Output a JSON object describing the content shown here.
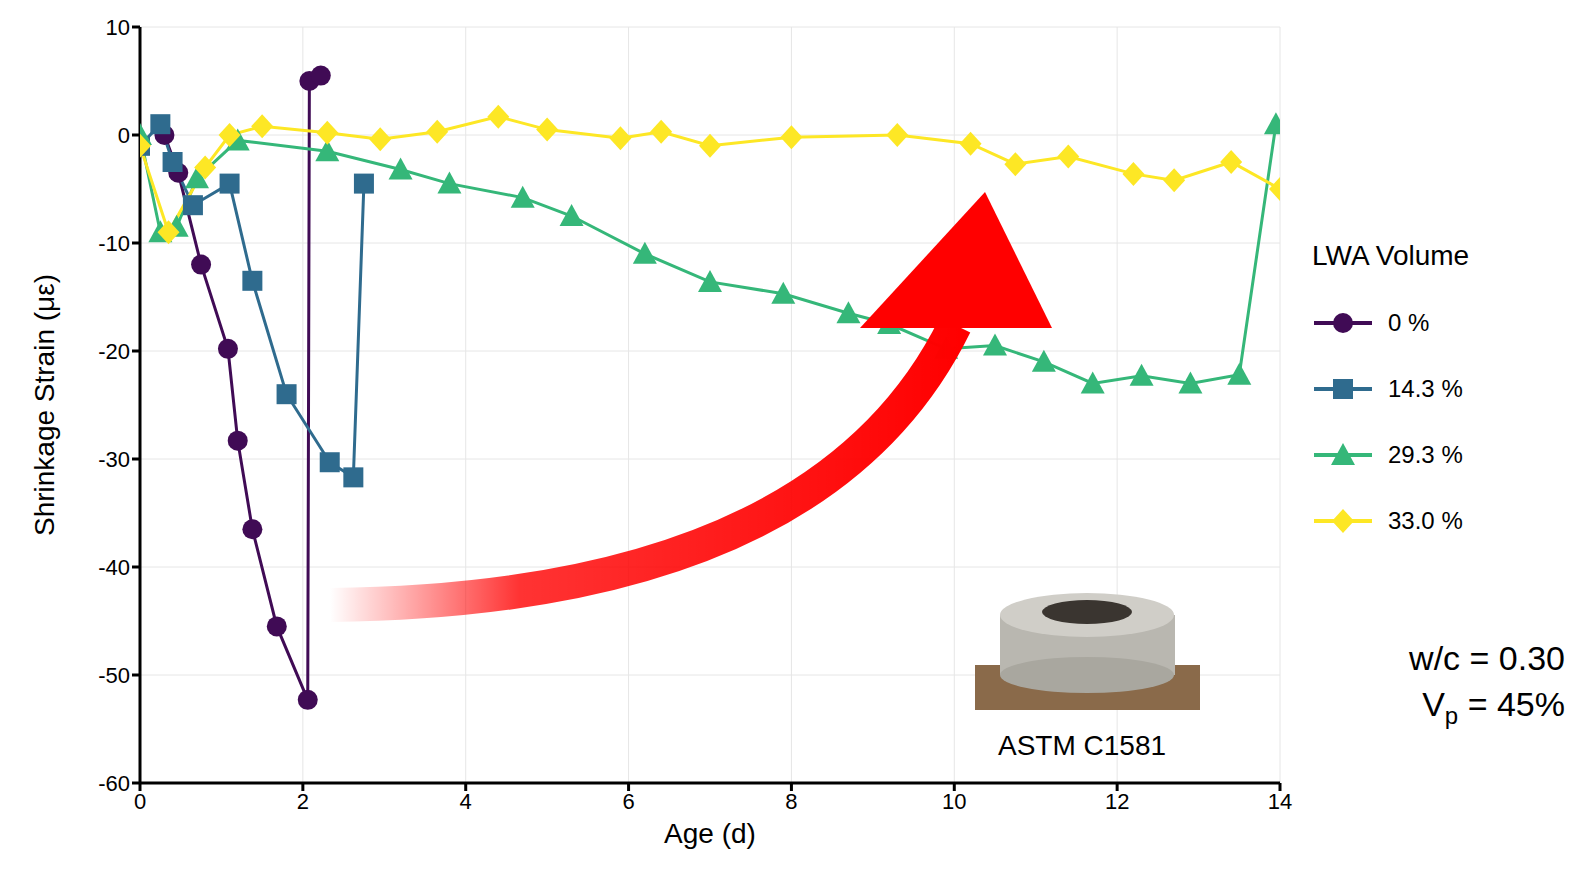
{
  "chart_data": {
    "type": "line",
    "xlabel": "Age (d)",
    "ylabel": "Shrinkage Strain (με)",
    "xlim": [
      0,
      14
    ],
    "xticks": [
      0,
      2,
      4,
      6,
      8,
      10,
      12,
      14
    ],
    "ylim": [
      -60,
      10
    ],
    "yticks": [
      -60,
      -50,
      -40,
      -30,
      -20,
      -10,
      0,
      10
    ],
    "grid": true,
    "legend": "right",
    "legend_title": "LWA Volume",
    "series": [
      {
        "name": "0 %",
        "color": "#400b55",
        "marker": "circle",
        "x": [
          0.3,
          0.47,
          0.75,
          1.08,
          1.2,
          1.38,
          1.68,
          2.06,
          2.08,
          2.22
        ],
        "values": [
          0,
          -3.5,
          -12,
          -19.8,
          -28.3,
          -36.5,
          -45.5,
          -52.3,
          5,
          5.5
        ]
      },
      {
        "name": "14.3 %",
        "color": "#2f6b8e",
        "marker": "square",
        "x": [
          0,
          0.25,
          0.4,
          0.65,
          1.1,
          1.38,
          1.8,
          2.33,
          2.62,
          2.75
        ],
        "values": [
          -1,
          1,
          -2.5,
          -6.5,
          -4.5,
          -13.5,
          -24,
          -30.3,
          -31.7,
          -4.5
        ]
      },
      {
        "name": "29.3 %",
        "color": "#35b779",
        "marker": "triangle",
        "x": [
          0,
          0.25,
          0.45,
          0.7,
          1.2,
          2.3,
          3.2,
          3.8,
          4.7,
          5.3,
          6.2,
          7,
          7.9,
          8.7,
          9.2,
          9.9,
          10.5,
          11.1,
          11.7,
          12.3,
          12.9,
          13.5,
          13.95
        ],
        "values": [
          0,
          -9,
          -8.5,
          -4,
          -0.5,
          -1.5,
          -3.2,
          -4.5,
          -5.8,
          -7.5,
          -11,
          -13.6,
          -14.7,
          -16.5,
          -17.5,
          -19.8,
          -19.5,
          -21,
          -23,
          -22.3,
          -23,
          -22.2,
          1
        ]
      },
      {
        "name": "33.0 %",
        "color": "#fde725",
        "marker": "diamond",
        "x": [
          0,
          0.35,
          0.8,
          1.1,
          1.5,
          2.3,
          2.95,
          3.65,
          4.4,
          5.0,
          5.9,
          6.4,
          7.0,
          8.0,
          9.3,
          10.2,
          10.75,
          11.4,
          12.2,
          12.7,
          13.4,
          14
        ],
        "values": [
          -1,
          -9,
          -3,
          0,
          0.8,
          0.2,
          -0.4,
          0.3,
          1.7,
          0.5,
          -0.3,
          0.3,
          -1,
          -0.2,
          0,
          -0.8,
          -2.7,
          -2,
          -3.6,
          -4.2,
          -2.5,
          -5
        ]
      }
    ],
    "annotations": [
      {
        "text": "w/c = 0.30"
      },
      {
        "text": "V",
        "subscript": "p",
        "tail": " = 45%"
      },
      {
        "text": "ASTM C1581"
      }
    ]
  }
}
